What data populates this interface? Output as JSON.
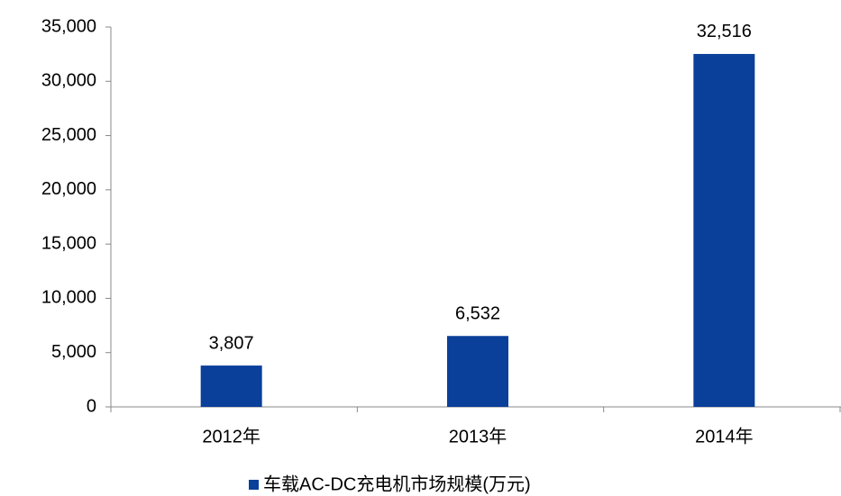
{
  "chart_data": {
    "type": "bar",
    "categories": [
      "2012年",
      "2013年",
      "2014年"
    ],
    "series": [
      {
        "name": "车载AC-DC充电机市场规模(万元)",
        "color": "#0a3f9a",
        "values": [
          3807,
          6532,
          32516
        ],
        "value_labels": [
          "3,807",
          "6,532",
          "32,516"
        ]
      }
    ],
    "ylim": [
      0,
      35000
    ],
    "yticks": [
      0,
      {
        "value": 5000,
        "label": "5,000"
      },
      {
        "value": 10000,
        "label": "10,000"
      },
      {
        "value": 15000,
        "label": "15,000"
      },
      {
        "value": 20000,
        "label": "20,000"
      },
      {
        "value": 25000,
        "label": "25,000"
      },
      {
        "value": 30000,
        "label": "30,000"
      },
      {
        "value": 35000,
        "label": "35,000"
      }
    ],
    "grid": false,
    "legend": "bottom"
  }
}
